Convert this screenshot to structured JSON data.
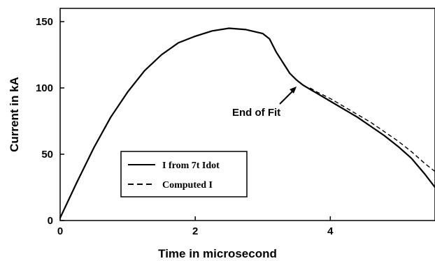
{
  "chart_data": {
    "type": "line",
    "title": "",
    "xlabel": "Time in microsecond",
    "ylabel": "Current in kA",
    "xlim": [
      0,
      5.55
    ],
    "ylim": [
      0,
      160
    ],
    "xticks": [
      0,
      2,
      4
    ],
    "yticks": [
      0,
      50,
      100,
      150
    ],
    "xtick_labels": [
      "0",
      "2",
      "4"
    ],
    "ytick_labels": [
      "0",
      "50",
      "100",
      "150"
    ],
    "grid": false,
    "legend_position": "bottom-left",
    "series": [
      {
        "name": "I from 7t Idot",
        "style": "solid",
        "x": [
          0,
          0.25,
          0.5,
          0.75,
          1.0,
          1.25,
          1.5,
          1.75,
          2.0,
          2.25,
          2.5,
          2.75,
          3.0,
          3.1,
          3.2,
          3.3,
          3.4,
          3.5,
          3.6,
          3.7,
          3.8,
          4.0,
          4.2,
          4.4,
          4.6,
          4.8,
          5.0,
          5.2,
          5.4,
          5.55
        ],
        "y": [
          2,
          29,
          55,
          78,
          97,
          113,
          125,
          134,
          139,
          143,
          145,
          144,
          141,
          137,
          127,
          119,
          111,
          106,
          102,
          99,
          96,
          90,
          84,
          78,
          71,
          64,
          56,
          47,
          35,
          25
        ]
      },
      {
        "name": "Computed I",
        "style": "dashed",
        "x": [
          3.7,
          3.8,
          4.0,
          4.2,
          4.4,
          4.6,
          4.8,
          5.0,
          5.2,
          5.4,
          5.55
        ],
        "y": [
          100,
          97,
          92,
          86,
          80,
          74,
          67,
          60,
          52,
          43,
          37
        ]
      }
    ],
    "annotations": [
      {
        "text": "End of Fit",
        "x": 3.72,
        "y": 99
      }
    ]
  },
  "colors": {
    "line": "#000000",
    "background": "#ffffff"
  }
}
